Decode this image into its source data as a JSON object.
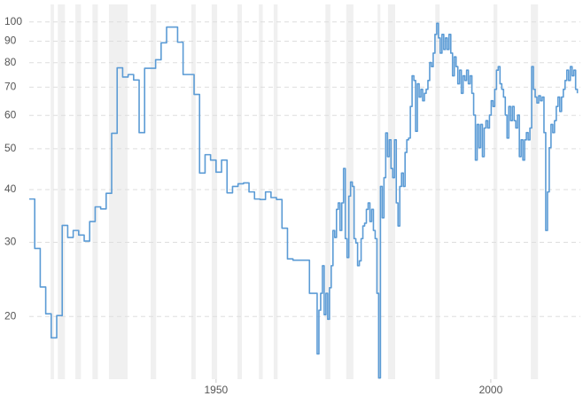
{
  "chart_data": {
    "type": "line",
    "log_y": true,
    "step": true,
    "grid": true,
    "color": "#5b9bd5",
    "shade_color": "#f0f0f0",
    "xlim": [
      1916,
      2016.3
    ],
    "ylim": [
      14.2,
      110
    ],
    "xticks": [
      1950,
      2000
    ],
    "yticks": [
      20,
      30,
      40,
      50,
      60,
      70,
      80,
      90,
      100
    ],
    "recessions": [
      [
        1919.9,
        1920.5
      ],
      [
        1921.2,
        1922.5
      ],
      [
        1924.4,
        1925.4
      ],
      [
        1927.5,
        1928.5
      ],
      [
        1930.5,
        1933.9
      ],
      [
        1938.1,
        1939.1
      ],
      [
        1945.5,
        1946.3
      ],
      [
        1949.2,
        1950.2
      ],
      [
        1953.9,
        1954.7
      ],
      [
        1957.8,
        1958.5
      ],
      [
        1960.5,
        1961.2
      ],
      [
        1969.9,
        1970.8
      ],
      [
        1973.7,
        1975.0
      ],
      [
        1979.4,
        1979.9
      ],
      [
        1981.3,
        1982.6
      ],
      [
        1989.9,
        1990.7
      ],
      [
        2000.5,
        2001.2
      ],
      [
        2007.3,
        2008.6
      ]
    ],
    "x": [
      1916,
      1917,
      1918,
      1919,
      1920,
      1921,
      1922,
      1923,
      1924,
      1925,
      1926,
      1927,
      1928,
      1929,
      1930,
      1931,
      1932,
      1933,
      1934,
      1935,
      1936,
      1937,
      1938,
      1939,
      1940,
      1941,
      1942,
      1943,
      1944,
      1945,
      1946,
      1947,
      1948,
      1949,
      1950,
      1951,
      1952,
      1953,
      1954,
      1955,
      1956,
      1957,
      1958,
      1959,
      1960,
      1961,
      1962,
      1963,
      1964,
      1965,
      1966,
      1967,
      1968.4,
      1968.72,
      1969.04,
      1969.36,
      1969.68,
      1970.0,
      1970.32,
      1970.64,
      1970.96,
      1971.28,
      1971.6,
      1971.92,
      1972.24,
      1972.56,
      1972.88,
      1973.2,
      1973.52,
      1973.84,
      1974.16,
      1974.48,
      1974.8,
      1975.12,
      1975.44,
      1975.76,
      1976.08,
      1976.4,
      1976.72,
      1977.04,
      1977.36,
      1977.68,
      1978.0,
      1978.32,
      1978.64,
      1978.96,
      1979.28,
      1979.6,
      1979.92,
      1980.24,
      1980.56,
      1980.88,
      1981.2,
      1981.52,
      1981.84,
      1982.16,
      1982.48,
      1982.8,
      1983.12,
      1983.44,
      1983.76,
      1984.08,
      1984.4,
      1984.72,
      1985.04,
      1985.36,
      1985.68,
      1986.0,
      1986.32,
      1986.64,
      1986.96,
      1987.28,
      1987.6,
      1987.92,
      1988.24,
      1988.56,
      1988.88,
      1989.2,
      1989.52,
      1989.84,
      1990.16,
      1990.48,
      1990.8,
      1991.12,
      1991.44,
      1991.76,
      1992.08,
      1992.4,
      1992.72,
      1993.04,
      1993.36,
      1993.68,
      1994.0,
      1994.32,
      1994.64,
      1994.96,
      1995.28,
      1995.6,
      1995.92,
      1996.24,
      1996.56,
      1996.88,
      1997.2,
      1997.52,
      1997.84,
      1998.16,
      1998.48,
      1998.8,
      1999.12,
      1999.44,
      1999.76,
      2000.08,
      2000.4,
      2000.72,
      2001.04,
      2001.36,
      2001.68,
      2002.0,
      2002.32,
      2002.64,
      2002.96,
      2003.28,
      2003.6,
      2003.92,
      2004.24,
      2004.56,
      2004.88,
      2005.2,
      2005.52,
      2005.84,
      2006.16,
      2006.48,
      2006.8,
      2007.12,
      2007.44,
      2007.76,
      2008.08,
      2008.4,
      2008.72,
      2009.04,
      2009.36,
      2009.68,
      2010.0,
      2010.32,
      2010.64,
      2010.96,
      2011.28,
      2011.6,
      2011.92,
      2012.24,
      2012.56,
      2012.88,
      2013.2,
      2013.52,
      2013.84,
      2014.16,
      2014.48,
      2014.8,
      2015.12,
      2015.44,
      2015.76
    ],
    "values": [
      38,
      29,
      23.5,
      20.3,
      17.8,
      20.1,
      32.9,
      30.8,
      32,
      31.2,
      30.2,
      33.6,
      36.4,
      36,
      39.2,
      54.4,
      77.8,
      74,
      75,
      72.8,
      54.6,
      77.6,
      77.6,
      81.3,
      89.2,
      97.2,
      97.2,
      89.5,
      75,
      75,
      67.3,
      43.8,
      48.4,
      47,
      44,
      47,
      39.3,
      40.7,
      41.3,
      41.5,
      39.5,
      38,
      37.9,
      39.5,
      38.3,
      37.9,
      32.4,
      27.4,
      27.2,
      27.2,
      27.2,
      22.7,
      16.3,
      20.7,
      22.7,
      26.4,
      20.2,
      22.7,
      19.7,
      23.4,
      26.4,
      32,
      30.8,
      35.9,
      37.2,
      32,
      37.2,
      44.9,
      30.6,
      27.6,
      38.6,
      41.7,
      40.7,
      30.6,
      29.9,
      26.4,
      27.1,
      30.6,
      32.8,
      33.3,
      35.9,
      37.2,
      33.6,
      35.9,
      32,
      30.6,
      22.7,
      14.3,
      40.7,
      34.3,
      42.7,
      54.5,
      47.9,
      52.5,
      44.9,
      42.7,
      52.5,
      37.2,
      32.8,
      40.7,
      43.8,
      40.7,
      49,
      52.5,
      53,
      63,
      74.5,
      72.6,
      55,
      71.3,
      66.3,
      69.2,
      65,
      67.7,
      69.2,
      72.6,
      80.1,
      78.3,
      84.3,
      93.4,
      99.2,
      91.6,
      84.3,
      93.4,
      86,
      91.6,
      86,
      93.4,
      84.3,
      74.5,
      82.6,
      78.3,
      71.3,
      76.8,
      67.7,
      74.5,
      72.6,
      76.8,
      71.3,
      74.5,
      67.7,
      60.1,
      47,
      57.1,
      50.3,
      57.1,
      47.9,
      56,
      58.3,
      56,
      60.1,
      65,
      63,
      69.2,
      76.8,
      78.3,
      71.3,
      69.2,
      66.3,
      60.1,
      53,
      63,
      58.3,
      63,
      58.3,
      56,
      60.1,
      47.9,
      52.5,
      47,
      52.5,
      54.6,
      52.5,
      56,
      78.3,
      69.2,
      66.3,
      64.2,
      66.8,
      65,
      66.3,
      54.6,
      32,
      39.5,
      50.3,
      57.1,
      54.6,
      58.3,
      63,
      66.3,
      61.3,
      66.3,
      69.2,
      72.6,
      76.8,
      72.6,
      78.3,
      74.5,
      76.8,
      69.2,
      67.7
    ]
  }
}
